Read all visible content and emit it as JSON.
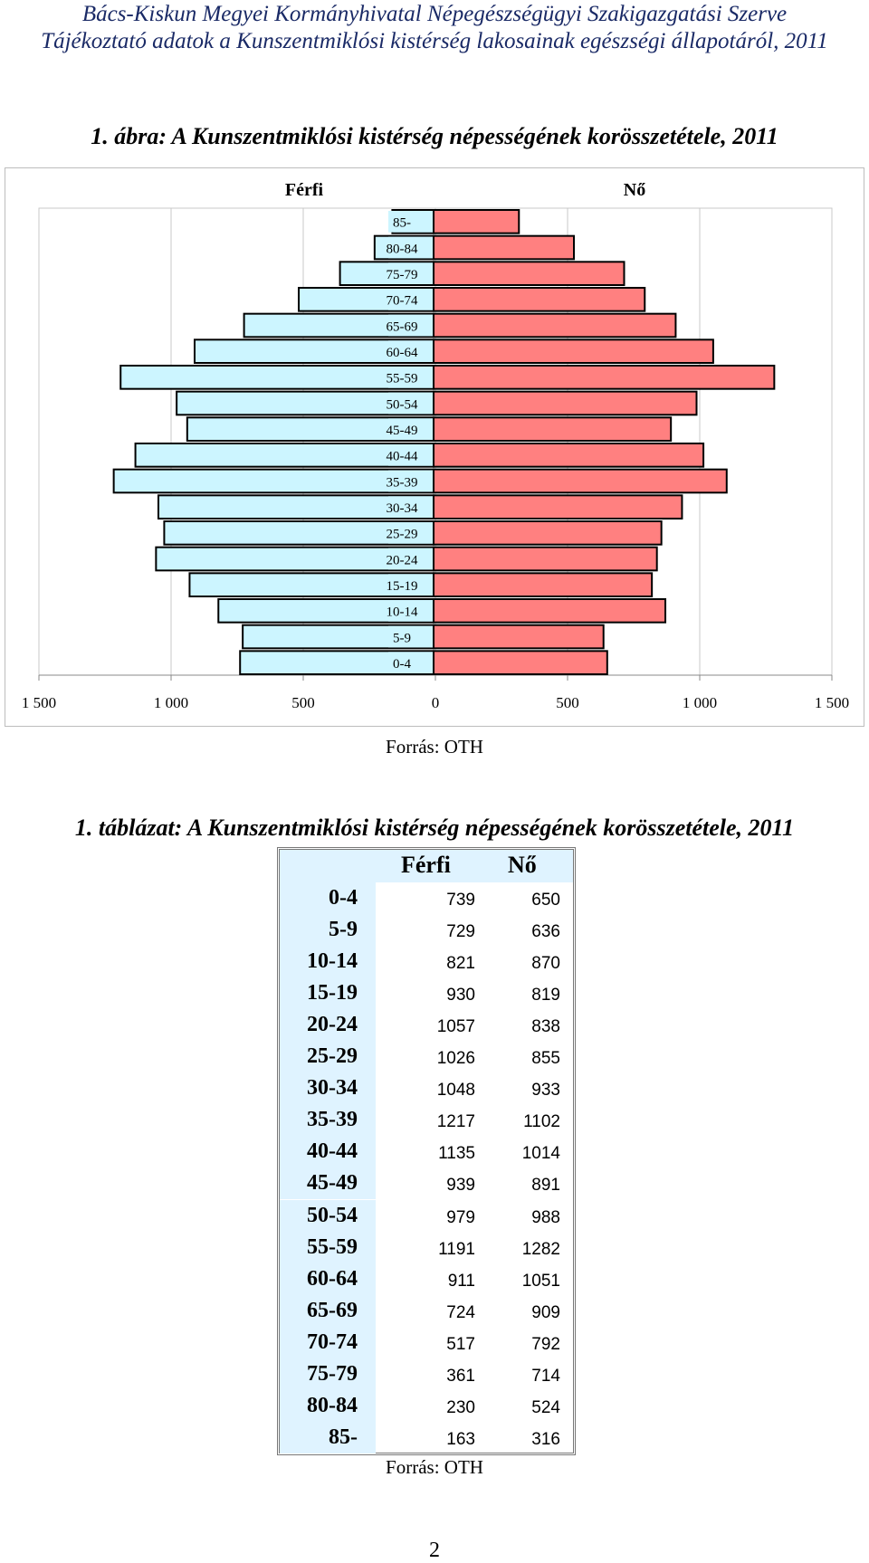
{
  "header": {
    "line1": "Bács-Kiskun Megyei Kormányhivatal Népegészségügyi Szakigazgatási Szerve",
    "line2": "Tájékoztató adatok a Kunszentmiklósi kistérség lakosainak egészségi állapotáról, 2011"
  },
  "figure": {
    "caption": "1. ábra: A Kunszentmiklósi kistérség népességének korösszetétele, 2011",
    "source": "Forrás: OTH"
  },
  "table": {
    "caption": "1. táblázat: A Kunszentmiklósi kistérség népességének korösszetétele, 2011",
    "col_male": "Férfi",
    "col_female": "Nő",
    "source": "Forrás: OTH"
  },
  "page_number": "2",
  "colors": {
    "male": "#ccf5ff",
    "female": "#ff8080",
    "stroke": "#000000"
  },
  "chart_data": {
    "type": "bar",
    "orientation": "horizontal-population-pyramid",
    "categories": [
      "0-4",
      "5-9",
      "10-14",
      "15-19",
      "20-24",
      "25-29",
      "30-34",
      "35-39",
      "40-44",
      "45-49",
      "50-54",
      "55-59",
      "60-64",
      "65-69",
      "70-74",
      "75-79",
      "80-84",
      "85-"
    ],
    "series": [
      {
        "name": "Férfi",
        "values": [
          739,
          729,
          821,
          930,
          1057,
          1026,
          1048,
          1217,
          1135,
          939,
          979,
          1191,
          911,
          724,
          517,
          361,
          230,
          163
        ]
      },
      {
        "name": "Nő",
        "values": [
          650,
          636,
          870,
          819,
          838,
          855,
          933,
          1102,
          1014,
          891,
          988,
          1282,
          1051,
          909,
          792,
          714,
          524,
          316
        ]
      }
    ],
    "xlim": [
      -1500,
      1500
    ],
    "x_ticks": [
      "1 500",
      "1 000",
      "500",
      "0",
      "500",
      "1 000",
      "1 500"
    ],
    "grid": true,
    "legend": "top"
  }
}
